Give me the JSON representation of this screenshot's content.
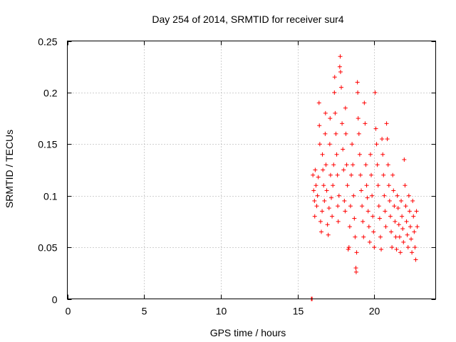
{
  "chart_data": {
    "type": "scatter",
    "title": "Day 254 of 2014, SRMTID for receiver sur4",
    "xlabel": "GPS time / hours",
    "ylabel": "SRMTID / TECUs",
    "xlim": [
      0,
      24
    ],
    "ylim": [
      0,
      0.25
    ],
    "xticks": [
      0,
      5,
      10,
      15,
      20
    ],
    "xtick_labels": [
      "0",
      "5",
      "10",
      "15",
      "20"
    ],
    "yticks": [
      0,
      0.05,
      0.1,
      0.15,
      0.2,
      0.25
    ],
    "ytick_labels": [
      "0",
      "0.05",
      "0.1",
      "0.15",
      "0.2",
      "0.25"
    ],
    "grid": true,
    "marker": "+",
    "color": "#ff0000",
    "series": [
      {
        "name": "SRMTID",
        "points": [
          [
            15.9,
            0.0
          ],
          [
            15.92,
            0.0
          ],
          [
            15.95,
            0.0
          ],
          [
            16.0,
            0.12
          ],
          [
            16.05,
            0.105
          ],
          [
            16.1,
            0.095
          ],
          [
            16.12,
            0.08
          ],
          [
            16.15,
            0.125
          ],
          [
            16.2,
            0.11
          ],
          [
            16.25,
            0.09
          ],
          [
            16.3,
            0.1
          ],
          [
            16.35,
            0.118
          ],
          [
            16.4,
            0.19
          ],
          [
            16.42,
            0.168
          ],
          [
            16.45,
            0.15
          ],
          [
            16.5,
            0.075
          ],
          [
            16.55,
            0.065
          ],
          [
            16.6,
            0.085
          ],
          [
            16.62,
            0.14
          ],
          [
            16.65,
            0.125
          ],
          [
            16.7,
            0.11
          ],
          [
            16.75,
            0.095
          ],
          [
            16.8,
            0.16
          ],
          [
            16.82,
            0.18
          ],
          [
            16.85,
            0.13
          ],
          [
            16.9,
            0.105
          ],
          [
            16.95,
            0.072
          ],
          [
            17.0,
            0.062
          ],
          [
            17.05,
            0.088
          ],
          [
            17.1,
            0.15
          ],
          [
            17.12,
            0.175
          ],
          [
            17.15,
            0.12
          ],
          [
            17.2,
            0.098
          ],
          [
            17.25,
            0.08
          ],
          [
            17.3,
            0.11
          ],
          [
            17.35,
            0.13
          ],
          [
            17.4,
            0.2
          ],
          [
            17.42,
            0.215
          ],
          [
            17.45,
            0.18
          ],
          [
            17.5,
            0.16
          ],
          [
            17.55,
            0.14
          ],
          [
            17.6,
            0.12
          ],
          [
            17.62,
            0.09
          ],
          [
            17.65,
            0.075
          ],
          [
            17.7,
            0.1
          ],
          [
            17.75,
            0.225
          ],
          [
            17.78,
            0.235
          ],
          [
            17.8,
            0.22
          ],
          [
            17.85,
            0.205
          ],
          [
            17.9,
            0.17
          ],
          [
            17.95,
            0.145
          ],
          [
            18.0,
            0.125
          ],
          [
            18.05,
            0.095
          ],
          [
            18.1,
            0.085
          ],
          [
            18.12,
            0.185
          ],
          [
            18.15,
            0.16
          ],
          [
            18.2,
            0.13
          ],
          [
            18.25,
            0.11
          ],
          [
            18.3,
            0.048
          ],
          [
            18.35,
            0.05
          ],
          [
            18.4,
            0.07
          ],
          [
            18.45,
            0.09
          ],
          [
            18.5,
            0.12
          ],
          [
            18.55,
            0.15
          ],
          [
            18.6,
            0.13
          ],
          [
            18.65,
            0.1
          ],
          [
            18.7,
            0.078
          ],
          [
            18.75,
            0.06
          ],
          [
            18.8,
            0.03
          ],
          [
            18.82,
            0.026
          ],
          [
            18.85,
            0.045
          ],
          [
            18.9,
            0.21
          ],
          [
            18.92,
            0.2
          ],
          [
            18.95,
            0.175
          ],
          [
            19.0,
            0.16
          ],
          [
            19.05,
            0.14
          ],
          [
            19.1,
            0.12
          ],
          [
            19.15,
            0.105
          ],
          [
            19.2,
            0.09
          ],
          [
            19.25,
            0.075
          ],
          [
            19.3,
            0.06
          ],
          [
            19.35,
            0.19
          ],
          [
            19.4,
            0.17
          ],
          [
            19.45,
            0.13
          ],
          [
            19.5,
            0.11
          ],
          [
            19.55,
            0.098
          ],
          [
            19.6,
            0.085
          ],
          [
            19.65,
            0.07
          ],
          [
            19.7,
            0.055
          ],
          [
            19.75,
            0.14
          ],
          [
            19.8,
            0.12
          ],
          [
            19.85,
            0.1
          ],
          [
            19.9,
            0.08
          ],
          [
            19.95,
            0.065
          ],
          [
            20.0,
            0.05
          ],
          [
            20.05,
            0.2
          ],
          [
            20.1,
            0.165
          ],
          [
            20.15,
            0.15
          ],
          [
            20.2,
            0.13
          ],
          [
            20.25,
            0.11
          ],
          [
            20.3,
            0.09
          ],
          [
            20.35,
            0.078
          ],
          [
            20.4,
            0.06
          ],
          [
            20.45,
            0.048
          ],
          [
            20.5,
            0.155
          ],
          [
            20.55,
            0.14
          ],
          [
            20.6,
            0.12
          ],
          [
            20.65,
            0.1
          ],
          [
            20.7,
            0.085
          ],
          [
            20.75,
            0.07
          ],
          [
            20.8,
            0.17
          ],
          [
            20.85,
            0.155
          ],
          [
            20.9,
            0.13
          ],
          [
            20.95,
            0.11
          ],
          [
            21.0,
            0.095
          ],
          [
            21.05,
            0.08
          ],
          [
            21.1,
            0.065
          ],
          [
            21.15,
            0.05
          ],
          [
            21.2,
            0.12
          ],
          [
            21.25,
            0.105
          ],
          [
            21.3,
            0.09
          ],
          [
            21.35,
            0.075
          ],
          [
            21.4,
            0.06
          ],
          [
            21.45,
            0.048
          ],
          [
            21.5,
            0.1
          ],
          [
            21.55,
            0.088
          ],
          [
            21.6,
            0.072
          ],
          [
            21.65,
            0.06
          ],
          [
            21.7,
            0.045
          ],
          [
            21.75,
            0.095
          ],
          [
            21.8,
            0.08
          ],
          [
            21.85,
            0.068
          ],
          [
            21.9,
            0.055
          ],
          [
            21.95,
            0.135
          ],
          [
            22.0,
            0.11
          ],
          [
            22.05,
            0.09
          ],
          [
            22.1,
            0.075
          ],
          [
            22.15,
            0.062
          ],
          [
            22.2,
            0.05
          ],
          [
            22.25,
            0.1
          ],
          [
            22.3,
            0.085
          ],
          [
            22.35,
            0.07
          ],
          [
            22.4,
            0.058
          ],
          [
            22.45,
            0.045
          ],
          [
            22.5,
            0.095
          ],
          [
            22.55,
            0.08
          ],
          [
            22.6,
            0.065
          ],
          [
            22.65,
            0.05
          ],
          [
            22.7,
            0.038
          ],
          [
            22.75,
            0.085
          ],
          [
            22.8,
            0.07
          ]
        ]
      }
    ]
  }
}
